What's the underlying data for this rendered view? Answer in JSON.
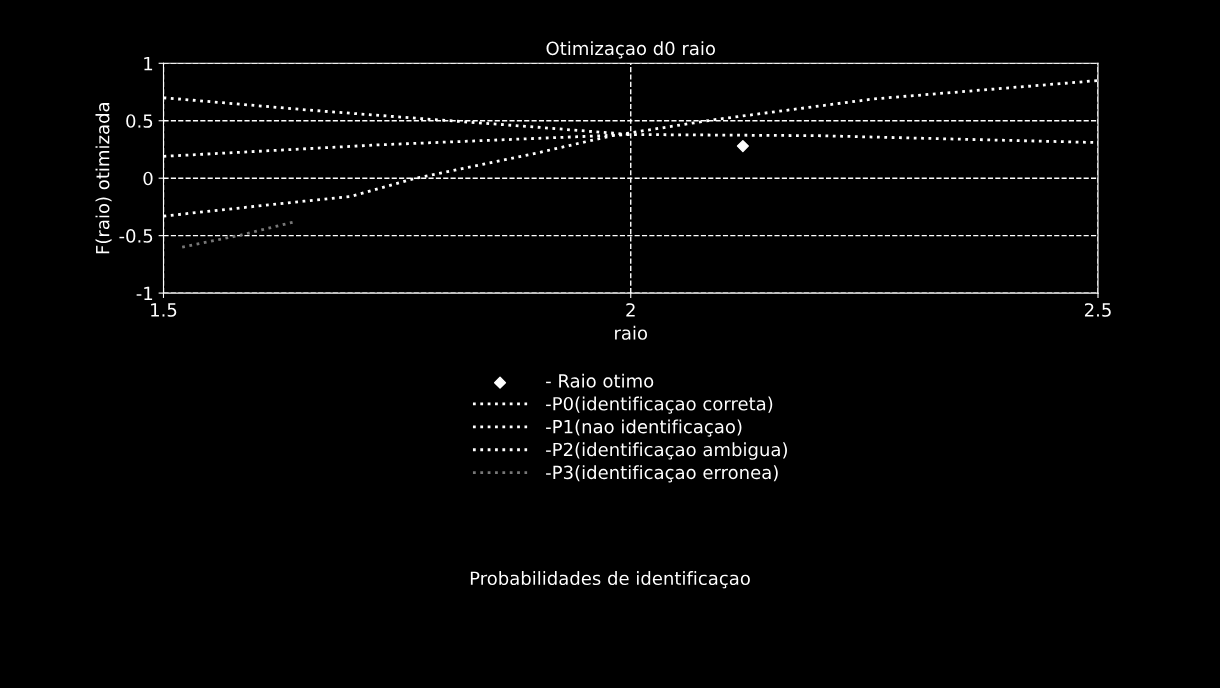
{
  "chart_data": {
    "type": "line",
    "title": "Otimizaçao d0 raio",
    "xlabel": "raio",
    "ylabel": "F(raio) otimizada",
    "xlim": [
      1.5,
      2.5
    ],
    "xticks": [
      1.5,
      2,
      2.5
    ],
    "ylim": [
      -1,
      1
    ],
    "yticks": [
      -1,
      -0.5,
      0,
      0.5,
      1
    ],
    "grid": true,
    "legend": "bottom",
    "line_style": "dotted",
    "marker": "none",
    "series": [
      {
        "name": "- Raio otimo",
        "type": "scatter",
        "marker": "diamond",
        "color": "#ffffff",
        "x": [
          2.12
        ],
        "values": [
          0.28
        ]
      },
      {
        "name": "-P0(identificaçao correta)",
        "color": "#ffffff",
        "x": [
          1.5,
          1.65,
          1.7,
          1.77,
          1.9,
          1.98,
          2.09,
          2.26,
          2.5
        ],
        "values": [
          -0.33,
          -0.2,
          -0.16,
          0,
          0.22,
          0.37,
          0.51,
          0.69,
          0.85
        ]
      },
      {
        "name": "-P1(nao identificaçao)",
        "color": "#ffffff",
        "x": [
          1.5,
          1.66,
          1.79,
          1.89,
          2.0
        ],
        "values": [
          0.7,
          0.59,
          0.51,
          0.45,
          0.38
        ]
      },
      {
        "name": "-P2(identificaçao ambigua)",
        "color": "#ffffff",
        "x": [
          1.5,
          1.73,
          2.0,
          2.2,
          2.5
        ],
        "values": [
          0.19,
          0.29,
          0.38,
          0.37,
          0.31
        ]
      },
      {
        "name": "-P3(identificaçao erronea)",
        "color": "#777777",
        "x": [
          1.52,
          1.58,
          1.64
        ],
        "values": [
          -0.6,
          -0.5,
          -0.38
        ]
      }
    ],
    "annotations": [
      "Probabilidades de identificaçao"
    ]
  }
}
